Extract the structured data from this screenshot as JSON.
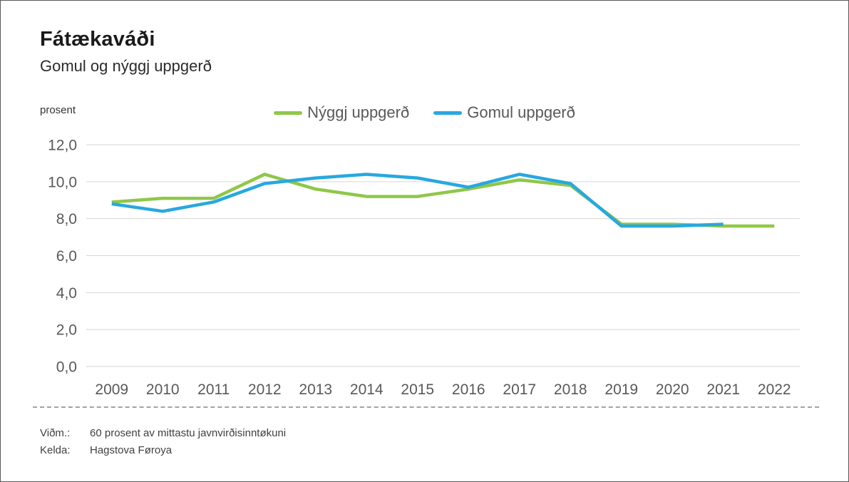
{
  "header": {
    "title": "Fátækaváði",
    "subtitle": "Gomul og nýggj uppgerð"
  },
  "axis_unit_label": "prosent",
  "legend": {
    "items": [
      {
        "label": "Nýggj uppgerð",
        "color": "#8FC748"
      },
      {
        "label": "Gomul uppgerð",
        "color": "#27A8E0"
      }
    ]
  },
  "footnotes": {
    "rows": [
      {
        "label": "Viðm.:",
        "text": "60 prosent av mittastu javnvirðisinntøkuni"
      },
      {
        "label": "Kelda:",
        "text": "Hagstova Føroya"
      }
    ]
  },
  "chart_data": {
    "type": "line",
    "title": "Fátækaváði",
    "subtitle": "Gomul og nýggj uppgerð",
    "ylabel": "prosent",
    "xlabel": "",
    "categories": [
      "2009",
      "2010",
      "2011",
      "2012",
      "2013",
      "2014",
      "2015",
      "2016",
      "2017",
      "2018",
      "2019",
      "2020",
      "2021",
      "2022"
    ],
    "series": [
      {
        "name": "Nýggj uppgerð",
        "color": "#8FC748",
        "values": [
          8.9,
          9.1,
          9.1,
          10.4,
          9.6,
          9.2,
          9.2,
          9.6,
          10.1,
          9.8,
          7.7,
          7.7,
          7.6,
          7.6
        ]
      },
      {
        "name": "Gomul uppgerð",
        "color": "#27A8E0",
        "values": [
          8.8,
          8.4,
          8.9,
          9.9,
          10.2,
          10.4,
          10.2,
          9.7,
          10.4,
          9.9,
          7.6,
          7.6,
          7.7,
          null
        ]
      }
    ],
    "ylim": [
      0,
      12
    ],
    "ytick_step": 2,
    "ytick_labels": [
      "0,0",
      "2,0",
      "4,0",
      "6,0",
      "8,0",
      "10,0",
      "12,0"
    ],
    "grid": true,
    "gridline_color": "#d6d6d6",
    "axis_label_color": "#595959",
    "legend_position": "top-center"
  }
}
